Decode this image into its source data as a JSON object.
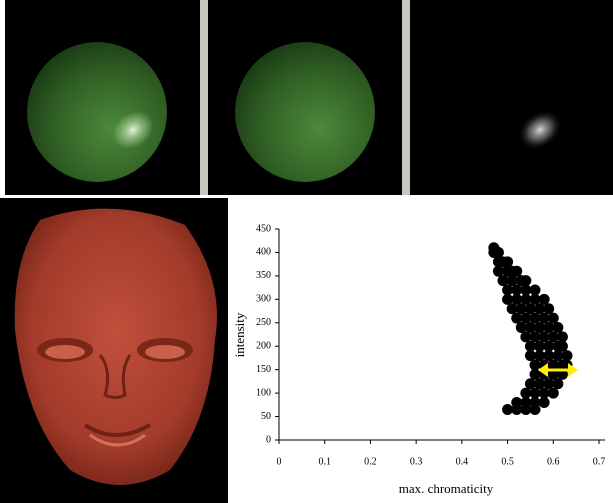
{
  "chart_data": {
    "type": "scatter",
    "xlabel": "max. chromaticity",
    "ylabel": "intensity",
    "xlim": [
      0,
      0.7
    ],
    "xticks": [
      0,
      0.1,
      0.2,
      0.3,
      0.4,
      0.5,
      0.6,
      0.7
    ],
    "ylim": [
      0,
      450
    ],
    "yticks": [
      0,
      50,
      100,
      150,
      200,
      250,
      300,
      350,
      400,
      450
    ],
    "color": "#000000",
    "x": [
      0.47,
      0.47,
      0.48,
      0.48,
      0.49,
      0.5,
      0.48,
      0.5,
      0.51,
      0.52,
      0.49,
      0.51,
      0.53,
      0.54,
      0.5,
      0.52,
      0.54,
      0.56,
      0.5,
      0.52,
      0.54,
      0.56,
      0.58,
      0.51,
      0.53,
      0.55,
      0.57,
      0.59,
      0.52,
      0.54,
      0.56,
      0.58,
      0.6,
      0.53,
      0.55,
      0.57,
      0.59,
      0.61,
      0.54,
      0.56,
      0.58,
      0.6,
      0.62,
      0.55,
      0.57,
      0.59,
      0.61,
      0.62,
      0.55,
      0.57,
      0.59,
      0.61,
      0.63,
      0.56,
      0.58,
      0.6,
      0.62,
      0.63,
      0.56,
      0.58,
      0.6,
      0.62,
      0.55,
      0.57,
      0.59,
      0.61,
      0.54,
      0.56,
      0.58,
      0.6,
      0.52,
      0.54,
      0.56,
      0.58,
      0.5,
      0.52,
      0.54,
      0.56
    ],
    "y": [
      410,
      400,
      400,
      380,
      380,
      380,
      360,
      360,
      360,
      360,
      340,
      340,
      340,
      340,
      320,
      320,
      320,
      320,
      300,
      300,
      300,
      300,
      300,
      280,
      280,
      280,
      280,
      280,
      260,
      260,
      260,
      260,
      260,
      240,
      240,
      240,
      240,
      240,
      220,
      220,
      220,
      220,
      220,
      200,
      200,
      200,
      200,
      200,
      180,
      180,
      180,
      180,
      180,
      160,
      160,
      160,
      160,
      160,
      140,
      140,
      140,
      140,
      120,
      120,
      120,
      120,
      100,
      100,
      100,
      100,
      80,
      80,
      80,
      80,
      65,
      65,
      65,
      65
    ]
  }
}
